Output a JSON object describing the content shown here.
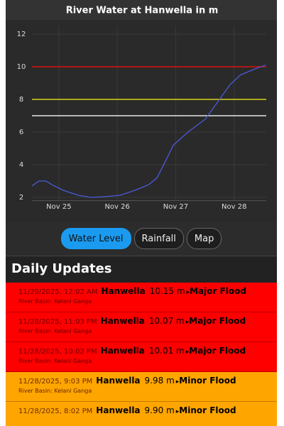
{
  "chart_data": {
    "type": "line",
    "title": "River Water at Hanwella in m",
    "x": [
      24.54,
      24.66,
      24.78,
      24.9,
      25.08,
      25.33,
      25.55,
      25.81,
      26.05,
      26.3,
      26.54,
      26.68,
      26.81,
      26.96,
      27.21,
      27.51,
      27.75,
      27.93,
      28.11,
      28.36,
      28.54
    ],
    "series": [
      {
        "color": "#4b5bdc",
        "values": [
          2.7,
          3.0,
          3.0,
          2.74,
          2.43,
          2.13,
          2.0,
          2.05,
          2.13,
          2.43,
          2.78,
          3.2,
          4.1,
          5.2,
          6.0,
          6.8,
          8.0,
          8.9,
          9.5,
          9.87,
          10.1
        ]
      }
    ],
    "thresholds": [
      {
        "value": 10,
        "color": "#e01010"
      },
      {
        "value": 8,
        "color": "#d8d21a"
      },
      {
        "value": 7,
        "color": "#e6e6e6"
      }
    ],
    "xlim": [
      24.54,
      28.55
    ],
    "xticks": [
      {
        "value": 25,
        "label": "Nov 25"
      },
      {
        "value": 26,
        "label": "Nov 26"
      },
      {
        "value": 27,
        "label": "Nov 27"
      },
      {
        "value": 28,
        "label": "Nov 28"
      }
    ],
    "ylim": [
      1.8,
      12.5
    ],
    "yticks": [
      2,
      4,
      6,
      8,
      10,
      12
    ],
    "grid": true
  },
  "tabs": [
    "Water Level",
    "Rainfall",
    "Map"
  ],
  "active_tab": 0,
  "section_title": "Daily Updates",
  "updates": [
    {
      "time": "11/29/2025, 12:02 AM",
      "station": "Hanwella",
      "level": "10.15 m",
      "status": "Major Flood",
      "basin": "River Basin: Kelani Ganga",
      "color": "#ff0000"
    },
    {
      "time": "11/28/2025, 11:03 PM",
      "station": "Hanwella",
      "level": "10.07 m",
      "status": "Major Flood",
      "basin": "River Basin: Kelani Ganga",
      "color": "#ff0000"
    },
    {
      "time": "11/28/2025, 10:02 PM",
      "station": "Hanwella",
      "level": "10.01 m",
      "status": "Major Flood",
      "basin": "River Basin: Kelani Ganga",
      "color": "#ff0000"
    },
    {
      "time": "11/28/2025, 9:03 PM",
      "station": "Hanwella",
      "level": "9.98 m",
      "status": "Minor Flood",
      "basin": "River Basin: Kelani Ganga",
      "color": "#ffa500"
    },
    {
      "time": "11/28/2025, 8:02 PM",
      "station": "Hanwella",
      "level": "9.90 m",
      "status": "Minor Flood",
      "color": "#ffa500"
    }
  ]
}
